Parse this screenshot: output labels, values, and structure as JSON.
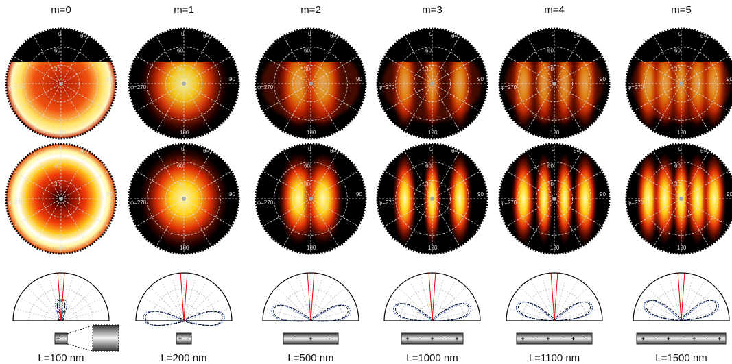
{
  "columns": [
    {
      "mode": "m=0",
      "length": "L=100 nm",
      "charges": [
        "+",
        "-"
      ]
    },
    {
      "mode": "m=1",
      "length": "L=200 nm",
      "charges": [
        "+",
        "-"
      ]
    },
    {
      "mode": "m=2",
      "length": "L=500 nm",
      "charges": [
        "-",
        "+",
        "-"
      ]
    },
    {
      "mode": "m=3",
      "length": "L=1000 nm",
      "charges": [
        "+",
        "-",
        "+",
        "-",
        "+"
      ]
    },
    {
      "mode": "m=4",
      "length": "L=1100 nm",
      "charges": [
        "+",
        "-",
        "+",
        "-",
        "+",
        "-"
      ]
    },
    {
      "mode": "m=5",
      "length": "L=1500 nm",
      "charges": [
        "+",
        "-",
        "+",
        "-",
        "+",
        "-",
        "+"
      ]
    }
  ],
  "polar_labels": {
    "phi0": "0",
    "theta90": "θ=90",
    "phi90": "90",
    "phi270": "φ=270",
    "phi180": "180",
    "theta30": "30",
    "theta60": "60"
  }
}
